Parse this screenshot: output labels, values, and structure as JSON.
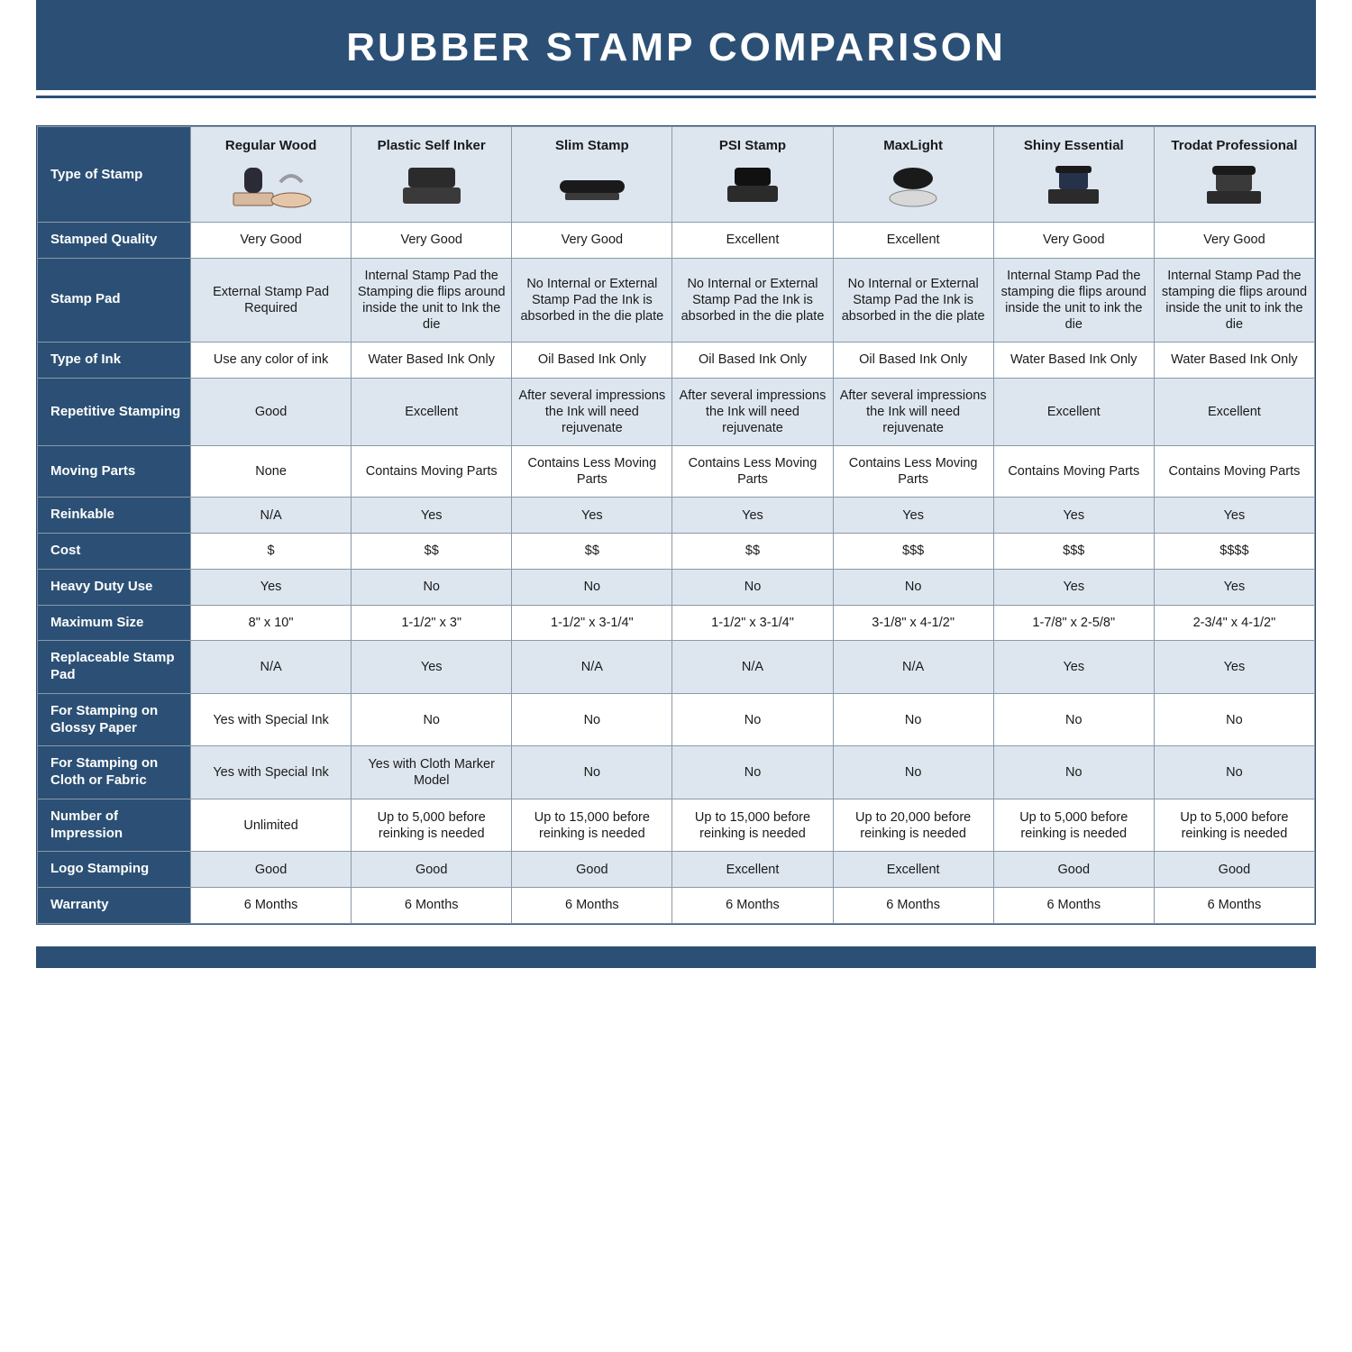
{
  "title": "RUBBER STAMP COMPARISON",
  "colors": {
    "brand": "#2c5075",
    "alt_row": "#dde6ef",
    "border": "#8a99a8",
    "text": "#1a1a1a",
    "white": "#ffffff"
  },
  "row_header_for_types": "Type of Stamp",
  "columns": [
    {
      "label": "Regular Wood",
      "icon": "stamp-wood-icon"
    },
    {
      "label": "Plastic Self Inker",
      "icon": "stamp-selfinker-icon"
    },
    {
      "label": "Slim Stamp",
      "icon": "stamp-slim-icon"
    },
    {
      "label": "PSI Stamp",
      "icon": "stamp-psi-icon"
    },
    {
      "label": "MaxLight",
      "icon": "stamp-maxlight-icon"
    },
    {
      "label": "Shiny Essential",
      "icon": "stamp-shiny-icon"
    },
    {
      "label": "Trodat Professional",
      "icon": "stamp-trodat-icon"
    }
  ],
  "rows": [
    {
      "header": "Stamped Quality",
      "alt": false,
      "cells": [
        "Very Good",
        "Very Good",
        "Very Good",
        "Excellent",
        "Excellent",
        "Very Good",
        "Very Good"
      ]
    },
    {
      "header": "Stamp Pad",
      "alt": true,
      "cells": [
        "External Stamp Pad Required",
        "Internal Stamp Pad the Stamping die flips around inside the unit to Ink the die",
        "No Internal or External Stamp Pad the Ink is absorbed in the die plate",
        "No Internal or External Stamp Pad the Ink is absorbed in the die plate",
        "No Internal or External Stamp Pad the Ink is absorbed in the die plate",
        "Internal Stamp Pad the stamping die flips around inside the unit to ink the die",
        "Internal Stamp Pad the stamping die flips around inside the unit to ink the die"
      ]
    },
    {
      "header": "Type of Ink",
      "alt": false,
      "cells": [
        "Use any color of ink",
        "Water Based Ink Only",
        "Oil Based Ink Only",
        "Oil Based Ink Only",
        "Oil Based Ink Only",
        "Water Based Ink Only",
        "Water Based Ink Only"
      ]
    },
    {
      "header": "Repetitive Stamping",
      "alt": true,
      "cells": [
        "Good",
        "Excellent",
        "After several impressions the Ink will need rejuvenate",
        "After several impressions the Ink will need rejuvenate",
        "After several impressions the Ink will need rejuvenate",
        "Excellent",
        "Excellent"
      ]
    },
    {
      "header": "Moving Parts",
      "alt": false,
      "cells": [
        "None",
        "Contains Moving Parts",
        "Contains Less Moving Parts",
        "Contains Less Moving Parts",
        "Contains Less Moving Parts",
        "Contains Moving Parts",
        "Contains Moving Parts"
      ]
    },
    {
      "header": "Reinkable",
      "alt": true,
      "cells": [
        "N/A",
        "Yes",
        "Yes",
        "Yes",
        "Yes",
        "Yes",
        "Yes"
      ]
    },
    {
      "header": "Cost",
      "alt": false,
      "cells": [
        "$",
        "$$",
        "$$",
        "$$",
        "$$$",
        "$$$",
        "$$$$"
      ]
    },
    {
      "header": "Heavy Duty Use",
      "alt": true,
      "cells": [
        "Yes",
        "No",
        "No",
        "No",
        "No",
        "Yes",
        "Yes"
      ]
    },
    {
      "header": "Maximum Size",
      "alt": false,
      "cells": [
        "8\" x 10\"",
        "1-1/2\" x 3\"",
        "1-1/2\" x 3-1/4\"",
        "1-1/2\" x 3-1/4\"",
        "3-1/8\" x 4-1/2\"",
        "1-7/8\" x 2-5/8\"",
        "2-3/4\" x 4-1/2\""
      ]
    },
    {
      "header": "Replaceable Stamp Pad",
      "alt": true,
      "cells": [
        "N/A",
        "Yes",
        "N/A",
        "N/A",
        "N/A",
        "Yes",
        "Yes"
      ]
    },
    {
      "header": "For Stamping on Glossy Paper",
      "alt": false,
      "cells": [
        "Yes with Special Ink",
        "No",
        "No",
        "No",
        "No",
        "No",
        "No"
      ]
    },
    {
      "header": "For Stamping on Cloth or Fabric",
      "alt": true,
      "cells": [
        "Yes with Special Ink",
        "Yes with Cloth Marker Model",
        "No",
        "No",
        "No",
        "No",
        "No"
      ]
    },
    {
      "header": "Number of Impression",
      "alt": false,
      "cells": [
        "Unlimited",
        "Up to 5,000 before reinking is needed",
        "Up to 15,000 before reinking is needed",
        "Up to 15,000 before reinking is needed",
        "Up to 20,000 before reinking is needed",
        "Up to 5,000 before reinking is needed",
        "Up to 5,000 before reinking is needed"
      ]
    },
    {
      "header": "Logo Stamping",
      "alt": true,
      "cells": [
        "Good",
        "Good",
        "Good",
        "Excellent",
        "Excellent",
        "Good",
        "Good"
      ]
    },
    {
      "header": "Warranty",
      "alt": false,
      "cells": [
        "6 Months",
        "6 Months",
        "6 Months",
        "6 Months",
        "6 Months",
        "6 Months",
        "6 Months"
      ]
    }
  ]
}
